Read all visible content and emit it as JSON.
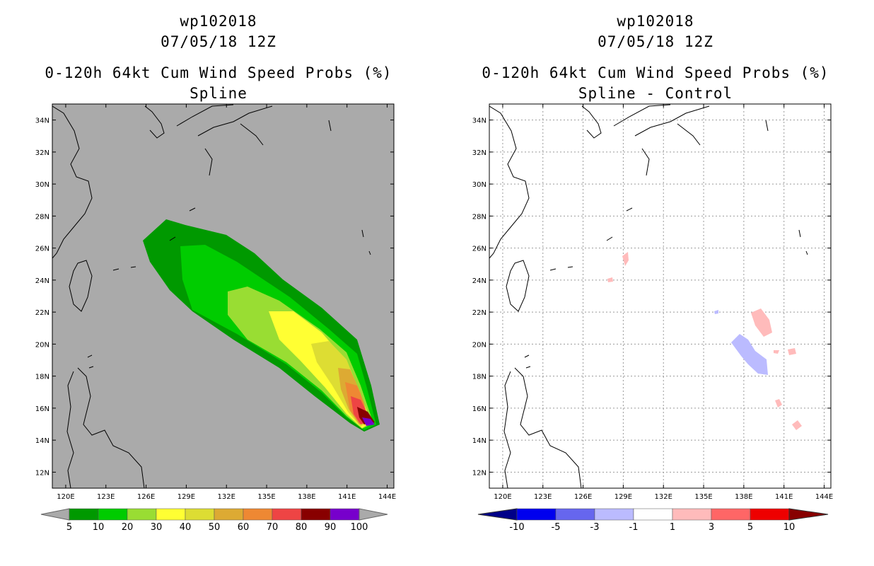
{
  "panels": [
    {
      "id": "spline",
      "title_lines": [
        "wp102018",
        "07/05/18 12Z",
        "0-120h 64kt Cum Wind Speed Probs (%)",
        "Spline"
      ],
      "background_color": "#aaaaaa",
      "gridlines": false
    },
    {
      "id": "spline-control",
      "title_lines": [
        "wp102018",
        "07/05/18 12Z",
        "0-120h 64kt Cum Wind Speed Probs (%)",
        "Spline - Control"
      ],
      "background_color": "#ffffff",
      "gridlines": true
    }
  ],
  "axes": {
    "lon_range": [
      119,
      144.5
    ],
    "lat_range": [
      11,
      35
    ],
    "lon_ticks": [
      "120E",
      "123E",
      "126E",
      "129E",
      "132E",
      "135E",
      "138E",
      "141E",
      "144E"
    ],
    "lat_ticks": [
      "12N",
      "14N",
      "16N",
      "18N",
      "20N",
      "22N",
      "24N",
      "26N",
      "28N",
      "30N",
      "32N",
      "34N"
    ]
  },
  "colorbars": {
    "probability": {
      "labels": [
        "5",
        "10",
        "20",
        "30",
        "40",
        "50",
        "60",
        "70",
        "80",
        "90",
        "100"
      ],
      "colors": [
        "#009900",
        "#00cc00",
        "#99dd33",
        "#ffff33",
        "#dddd33",
        "#ddaa33",
        "#ee8833",
        "#ee4444",
        "#880000",
        "#7700cc"
      ],
      "end_color": "#aaaaaa"
    },
    "difference": {
      "labels": [
        "-10",
        "-5",
        "-3",
        "-1",
        "1",
        "3",
        "5",
        "10"
      ],
      "colors": [
        "#0000ee",
        "#6666ee",
        "#bbbbff",
        "#ffffff",
        "#ffbbbb",
        "#ff6666",
        "#ee0000"
      ],
      "end_low": "#000088",
      "end_high": "#880000"
    }
  }
}
